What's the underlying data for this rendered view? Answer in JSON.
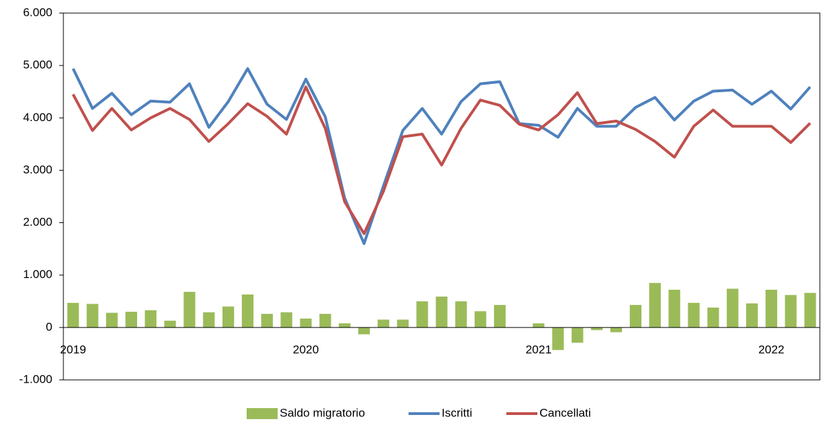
{
  "chart_data": {
    "type": "bar_line",
    "categories": [
      "2019",
      null,
      null,
      null,
      null,
      null,
      null,
      null,
      null,
      null,
      null,
      null,
      "2020",
      null,
      null,
      null,
      null,
      null,
      null,
      null,
      null,
      null,
      null,
      null,
      "2021",
      null,
      null,
      null,
      null,
      null,
      null,
      null,
      null,
      null,
      null,
      null,
      "2022",
      null,
      null
    ],
    "series": [
      {
        "name": "Saldo migratorio",
        "type": "bar",
        "color": "#9bbb59",
        "values": [
          470,
          450,
          280,
          300,
          330,
          130,
          680,
          290,
          400,
          630,
          260,
          290,
          170,
          260,
          80,
          -130,
          150,
          150,
          500,
          590,
          500,
          310,
          430,
          0,
          80,
          -430,
          -290,
          -50,
          -90,
          430,
          850,
          720,
          470,
          380,
          740,
          460,
          720,
          620,
          660
        ]
      },
      {
        "name": "Iscritti",
        "type": "line",
        "color": "#4f81bd",
        "values": [
          4940,
          4180,
          4470,
          4060,
          4320,
          4300,
          4650,
          3820,
          4310,
          4940,
          4260,
          3970,
          4740,
          4020,
          2470,
          1600,
          2700,
          3760,
          4180,
          3690,
          4310,
          4650,
          4690,
          3890,
          3860,
          3630,
          4180,
          3840,
          3840,
          4200,
          4390,
          3960,
          4320,
          4510,
          4530,
          4260,
          4510,
          4170,
          4590
        ]
      },
      {
        "name": "Cancellati",
        "type": "line",
        "color": "#c0504d",
        "values": [
          4450,
          3760,
          4180,
          3770,
          4000,
          4180,
          3970,
          3550,
          3890,
          4270,
          4030,
          3690,
          4590,
          3800,
          2400,
          1790,
          2600,
          3640,
          3690,
          3100,
          3800,
          4340,
          4240,
          3880,
          3770,
          4060,
          4480,
          3890,
          3940,
          3780,
          3550,
          3250,
          3840,
          4150,
          3840,
          3840,
          3840,
          3530,
          3900
        ]
      }
    ],
    "ylim": [
      -1000,
      6000
    ],
    "yticks": [
      {
        "value": -1000,
        "label": "-1.000"
      },
      0,
      {
        "value": 1000,
        "label": "1.000"
      },
      {
        "value": 2000,
        "label": "2.000"
      },
      {
        "value": 3000,
        "label": "3.000"
      },
      {
        "value": 4000,
        "label": "4.000"
      },
      {
        "value": 5000,
        "label": "5.000"
      },
      {
        "value": 6000,
        "label": "6.000"
      }
    ],
    "legend": "bottom"
  }
}
